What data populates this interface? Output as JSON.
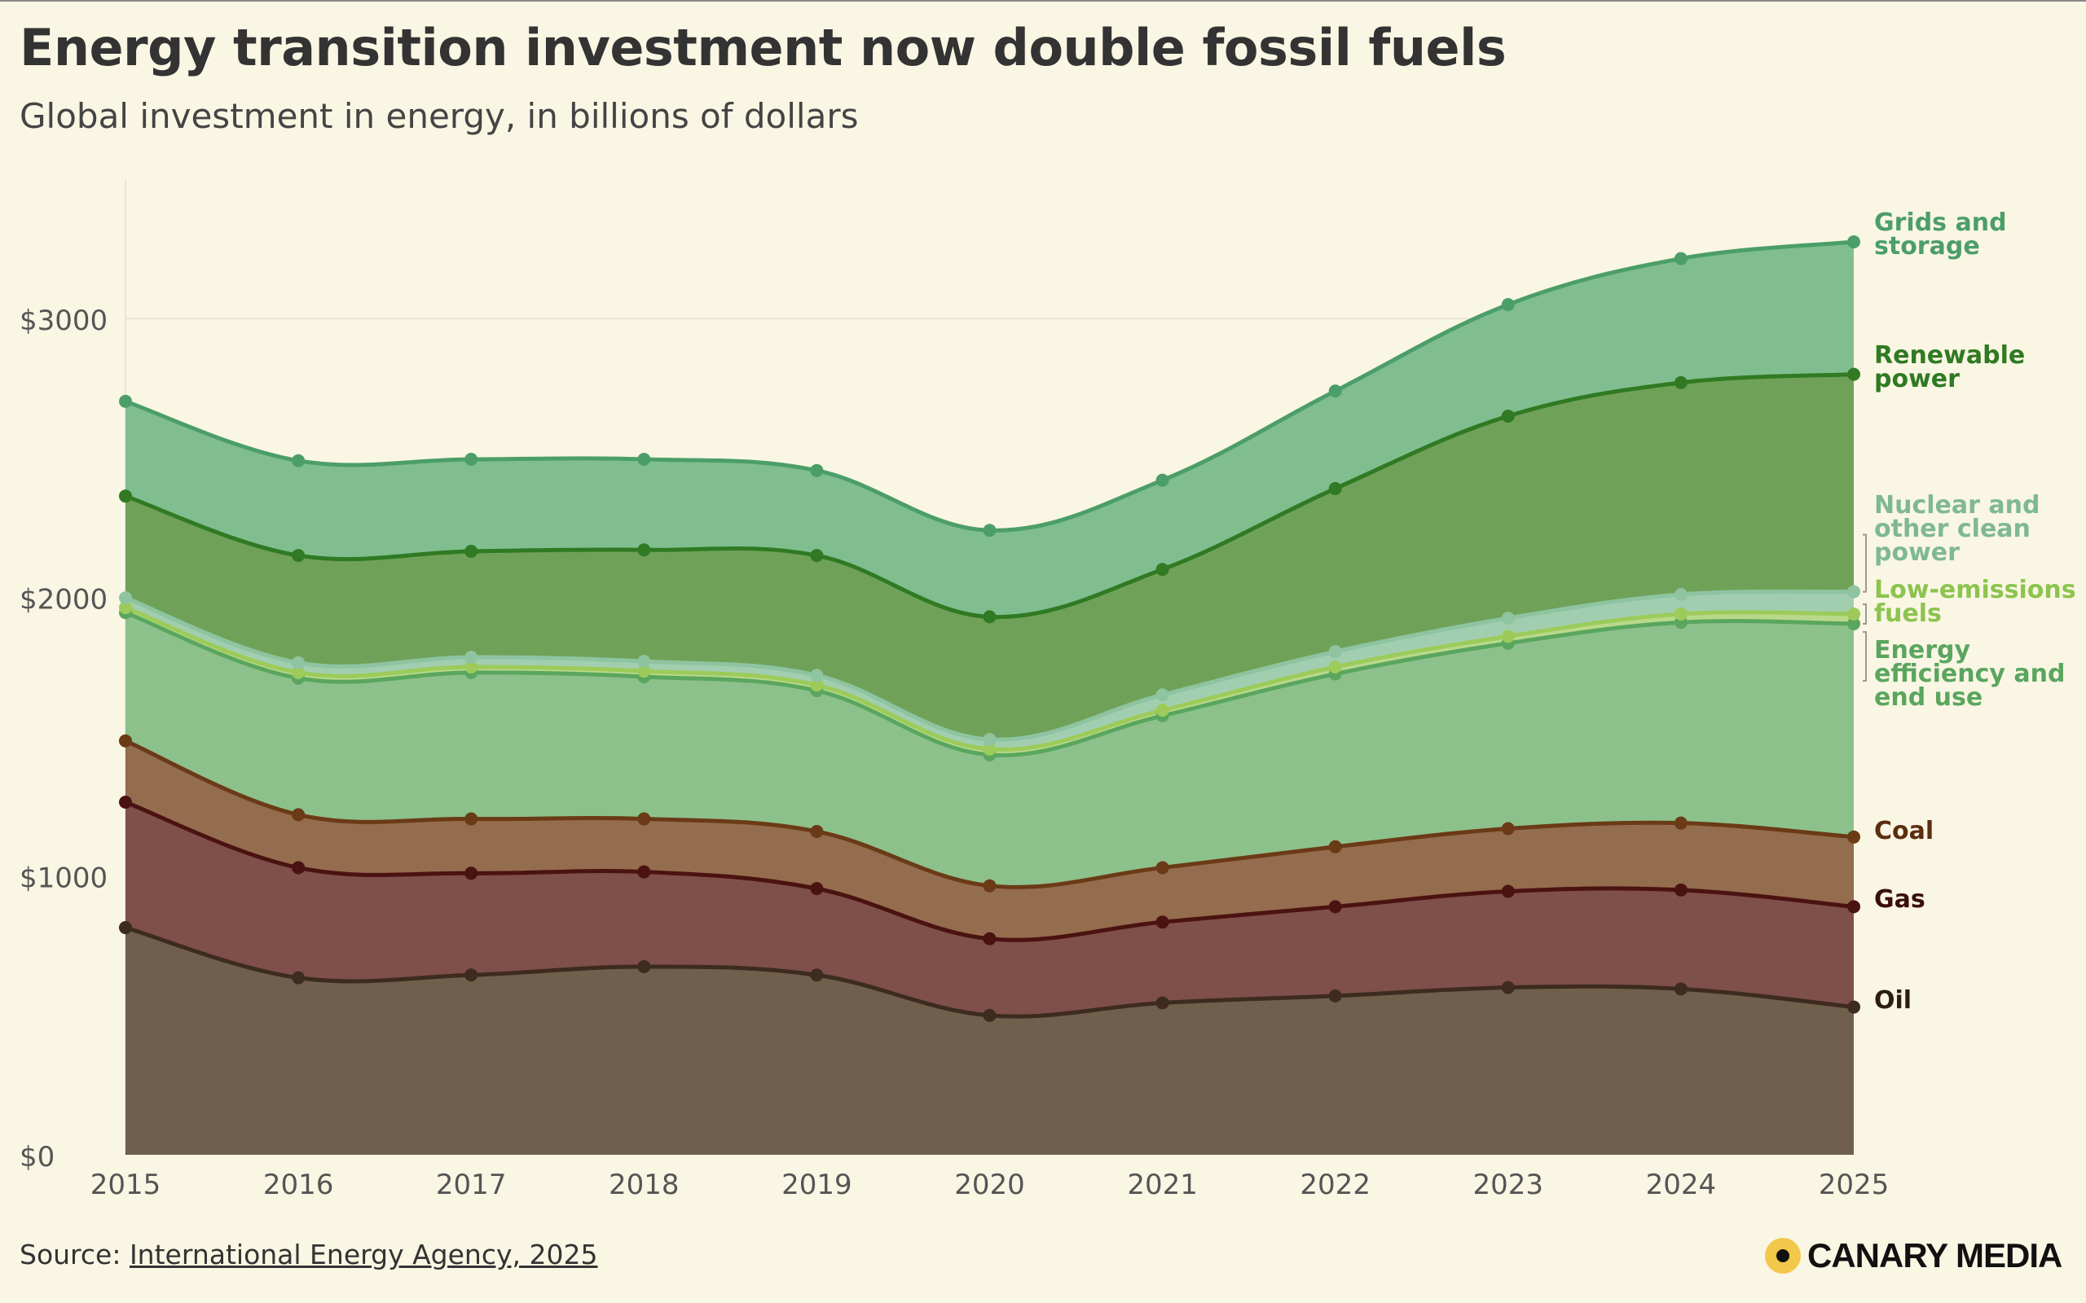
{
  "header": {
    "title": "Energy transition investment now double fossil fuels",
    "subtitle": "Global investment in energy, in billions of dollars"
  },
  "footer": {
    "source_prefix": "Source: ",
    "source_link": "International Energy Agency, 2025",
    "brand": "CANARY MEDIA"
  },
  "colors": {
    "background": "#faf6e4",
    "oil": "#3d2b1f",
    "gas": "#4a1210",
    "coal": "#6b3a16",
    "efficiency": "#5aa65e",
    "low_emissions": "#9ccb5a",
    "nuclear": "#8ec4a0",
    "renewable": "#2f7a22",
    "grids": "#4c9e68",
    "brand_yellow": "#f2c84b"
  },
  "chart_data": {
    "type": "area",
    "stacked": true,
    "x": [
      2015,
      2016,
      2017,
      2018,
      2019,
      2020,
      2021,
      2022,
      2023,
      2024,
      2025
    ],
    "ylim": [
      0,
      3500
    ],
    "yticks": [
      0,
      1000,
      2000,
      3000
    ],
    "ytick_labels": [
      "$0",
      "$1000",
      "$2000",
      "$3000"
    ],
    "xtick_labels": [
      "2015",
      "2016",
      "2017",
      "2018",
      "2019",
      "2020",
      "2021",
      "2022",
      "2023",
      "2024",
      "2025"
    ],
    "grid": true,
    "legend": "direct labels at right end",
    "series": [
      {
        "key": "oil",
        "name": "Oil",
        "label_lines": [
          "Oil"
        ],
        "values": [
          815,
          635,
          645,
          675,
          645,
          500,
          545,
          570,
          600,
          595,
          530
        ]
      },
      {
        "key": "gas",
        "name": "Gas",
        "label_lines": [
          "Gas"
        ],
        "values": [
          450,
          395,
          365,
          340,
          310,
          275,
          290,
          320,
          345,
          355,
          360
        ]
      },
      {
        "key": "coal",
        "name": "Coal",
        "label_lines": [
          "Coal"
        ],
        "values": [
          220,
          190,
          195,
          190,
          205,
          190,
          195,
          215,
          225,
          240,
          250
        ]
      },
      {
        "key": "efficiency",
        "name": "Energy efficiency and end use",
        "label_lines": [
          "Energy",
          "efficiency and",
          "end use"
        ],
        "values": [
          460,
          490,
          525,
          510,
          505,
          470,
          545,
          620,
          665,
          720,
          765
        ]
      },
      {
        "key": "low_emissions",
        "name": "Low-emissions fuels",
        "label_lines": [
          "Low-emissions",
          "fuels"
        ],
        "values": [
          18,
          20,
          20,
          20,
          20,
          20,
          20,
          25,
          25,
          30,
          35
        ]
      },
      {
        "key": "nuclear",
        "name": "Nuclear and other clean power",
        "label_lines": [
          "Nuclear and",
          "other clean",
          "power"
        ],
        "values": [
          35,
          35,
          35,
          35,
          35,
          35,
          55,
          55,
          65,
          70,
          80
        ]
      },
      {
        "key": "renewable",
        "name": "Renewable power",
        "label_lines": [
          "Renewable",
          "power"
        ],
        "values": [
          365,
          385,
          380,
          400,
          430,
          440,
          450,
          585,
          725,
          760,
          780
        ]
      },
      {
        "key": "grids",
        "name": "Grids and storage",
        "label_lines": [
          "Grids and",
          "storage"
        ],
        "values": [
          340,
          340,
          330,
          325,
          305,
          310,
          320,
          350,
          400,
          445,
          475
        ]
      }
    ]
  }
}
